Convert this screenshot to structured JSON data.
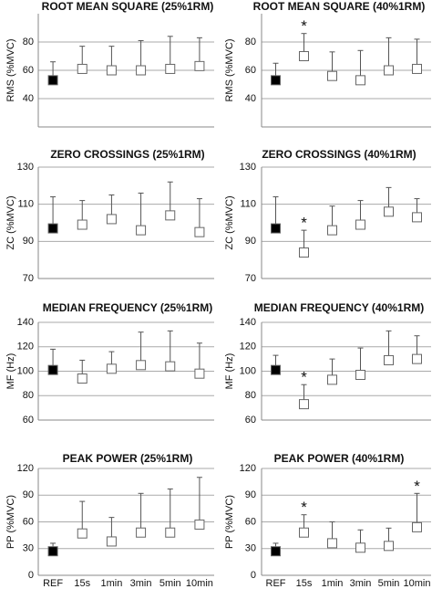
{
  "chart_data": [
    {
      "type": "dot",
      "title": "ROOT MEAN SQUARE (25%1RM)",
      "y_label": "RMS  (%MVC)",
      "ylim": [
        20,
        100
      ],
      "yticks": [
        40,
        60,
        80
      ],
      "grid": true,
      "values": [
        53,
        61,
        60,
        60,
        61,
        63
      ],
      "errors": [
        13,
        16,
        17,
        21,
        23,
        20
      ],
      "marker_colors": [
        "#000000",
        "#ffffff",
        "#ffffff",
        "#ffffff",
        "#ffffff",
        "#ffffff"
      ],
      "annotations": []
    },
    {
      "type": "dot",
      "title": "ROOT MEAN SQUARE (40%1RM)",
      "y_label": "RMS  (%MVC)",
      "ylim": [
        20,
        100
      ],
      "yticks": [
        40,
        60,
        80
      ],
      "grid": true,
      "values": [
        53,
        70,
        56,
        53,
        60,
        61
      ],
      "errors": [
        12,
        16,
        17,
        21,
        23,
        21
      ],
      "marker_colors": [
        "#000000",
        "#ffffff",
        "#ffffff",
        "#ffffff",
        "#ffffff",
        "#ffffff"
      ],
      "annotations": [
        {
          "text": "*",
          "at": 1
        }
      ]
    },
    {
      "type": "dot",
      "title": "ZERO CROSSINGS (25%1RM)",
      "y_label": "ZC (%MVC)",
      "ylim": [
        70,
        130
      ],
      "yticks": [
        70,
        90,
        110,
        130
      ],
      "grid": true,
      "values": [
        97,
        99,
        102,
        96,
        104,
        95
      ],
      "errors": [
        17,
        13,
        13,
        20,
        18,
        18
      ],
      "marker_colors": [
        "#000000",
        "#ffffff",
        "#ffffff",
        "#ffffff",
        "#ffffff",
        "#ffffff"
      ],
      "annotations": []
    },
    {
      "type": "dot",
      "title": "ZERO CROSSINGS (40%1RM)",
      "y_label": "ZC (%MVC)",
      "ylim": [
        70,
        130
      ],
      "yticks": [
        70,
        90,
        110,
        130
      ],
      "grid": true,
      "values": [
        97,
        84,
        96,
        99,
        106,
        103
      ],
      "errors": [
        17,
        12,
        13,
        13,
        13,
        10
      ],
      "marker_colors": [
        "#000000",
        "#ffffff",
        "#ffffff",
        "#ffffff",
        "#ffffff",
        "#ffffff"
      ],
      "annotations": [
        {
          "text": "*",
          "at": 1
        }
      ]
    },
    {
      "type": "dot",
      "title": "MEDIAN FREQUENCY (25%1RM)",
      "y_label": "MF (Hz)",
      "ylim": [
        60,
        140
      ],
      "yticks": [
        60,
        80,
        100,
        120,
        140
      ],
      "grid": true,
      "values": [
        101,
        94,
        102,
        105,
        104,
        98
      ],
      "errors": [
        17,
        15,
        14,
        27,
        29,
        25
      ],
      "marker_colors": [
        "#000000",
        "#ffffff",
        "#ffffff",
        "#ffffff",
        "#ffffff",
        "#ffffff"
      ],
      "annotations": []
    },
    {
      "type": "dot",
      "title": "MEDIAN FREQUENCY (40%1RM)",
      "y_label": "MF (Hz)",
      "ylim": [
        60,
        140
      ],
      "yticks": [
        60,
        80,
        100,
        120,
        140
      ],
      "grid": true,
      "values": [
        101,
        73,
        93,
        97,
        109,
        110
      ],
      "errors": [
        12,
        16,
        17,
        22,
        24,
        19
      ],
      "marker_colors": [
        "#000000",
        "#ffffff",
        "#ffffff",
        "#ffffff",
        "#ffffff",
        "#ffffff"
      ],
      "annotations": [
        {
          "text": "*",
          "at": 1
        }
      ]
    },
    {
      "type": "dot",
      "title": "PEAK POWER (25%1RM)",
      "y_label": "PP (%MVC)",
      "ylim": [
        0,
        120
      ],
      "yticks": [
        0,
        30,
        60,
        90,
        120
      ],
      "grid": true,
      "categories": [
        "REF",
        "15s",
        "1min",
        "3min",
        "5min",
        "10min"
      ],
      "values": [
        27,
        47,
        38,
        48,
        48,
        57
      ],
      "errors": [
        9,
        36,
        27,
        44,
        49,
        53
      ],
      "marker_colors": [
        "#000000",
        "#ffffff",
        "#ffffff",
        "#ffffff",
        "#ffffff",
        "#ffffff"
      ],
      "annotations": []
    },
    {
      "type": "dot",
      "title": "PEAK POWER (40%1RM)",
      "y_label": "PP (%MVC)",
      "ylim": [
        0,
        120
      ],
      "yticks": [
        0,
        30,
        60,
        90,
        120
      ],
      "grid": true,
      "categories": [
        "REF",
        "15s",
        "1min",
        "3min",
        "5min",
        "10min"
      ],
      "values": [
        27,
        48,
        36,
        31,
        33,
        54
      ],
      "errors": [
        9,
        20,
        24,
        20,
        20,
        38
      ],
      "marker_colors": [
        "#000000",
        "#ffffff",
        "#ffffff",
        "#ffffff",
        "#ffffff",
        "#ffffff"
      ],
      "annotations": [
        {
          "text": "*",
          "at": 1
        },
        {
          "text": "*",
          "at": 5
        }
      ]
    }
  ]
}
